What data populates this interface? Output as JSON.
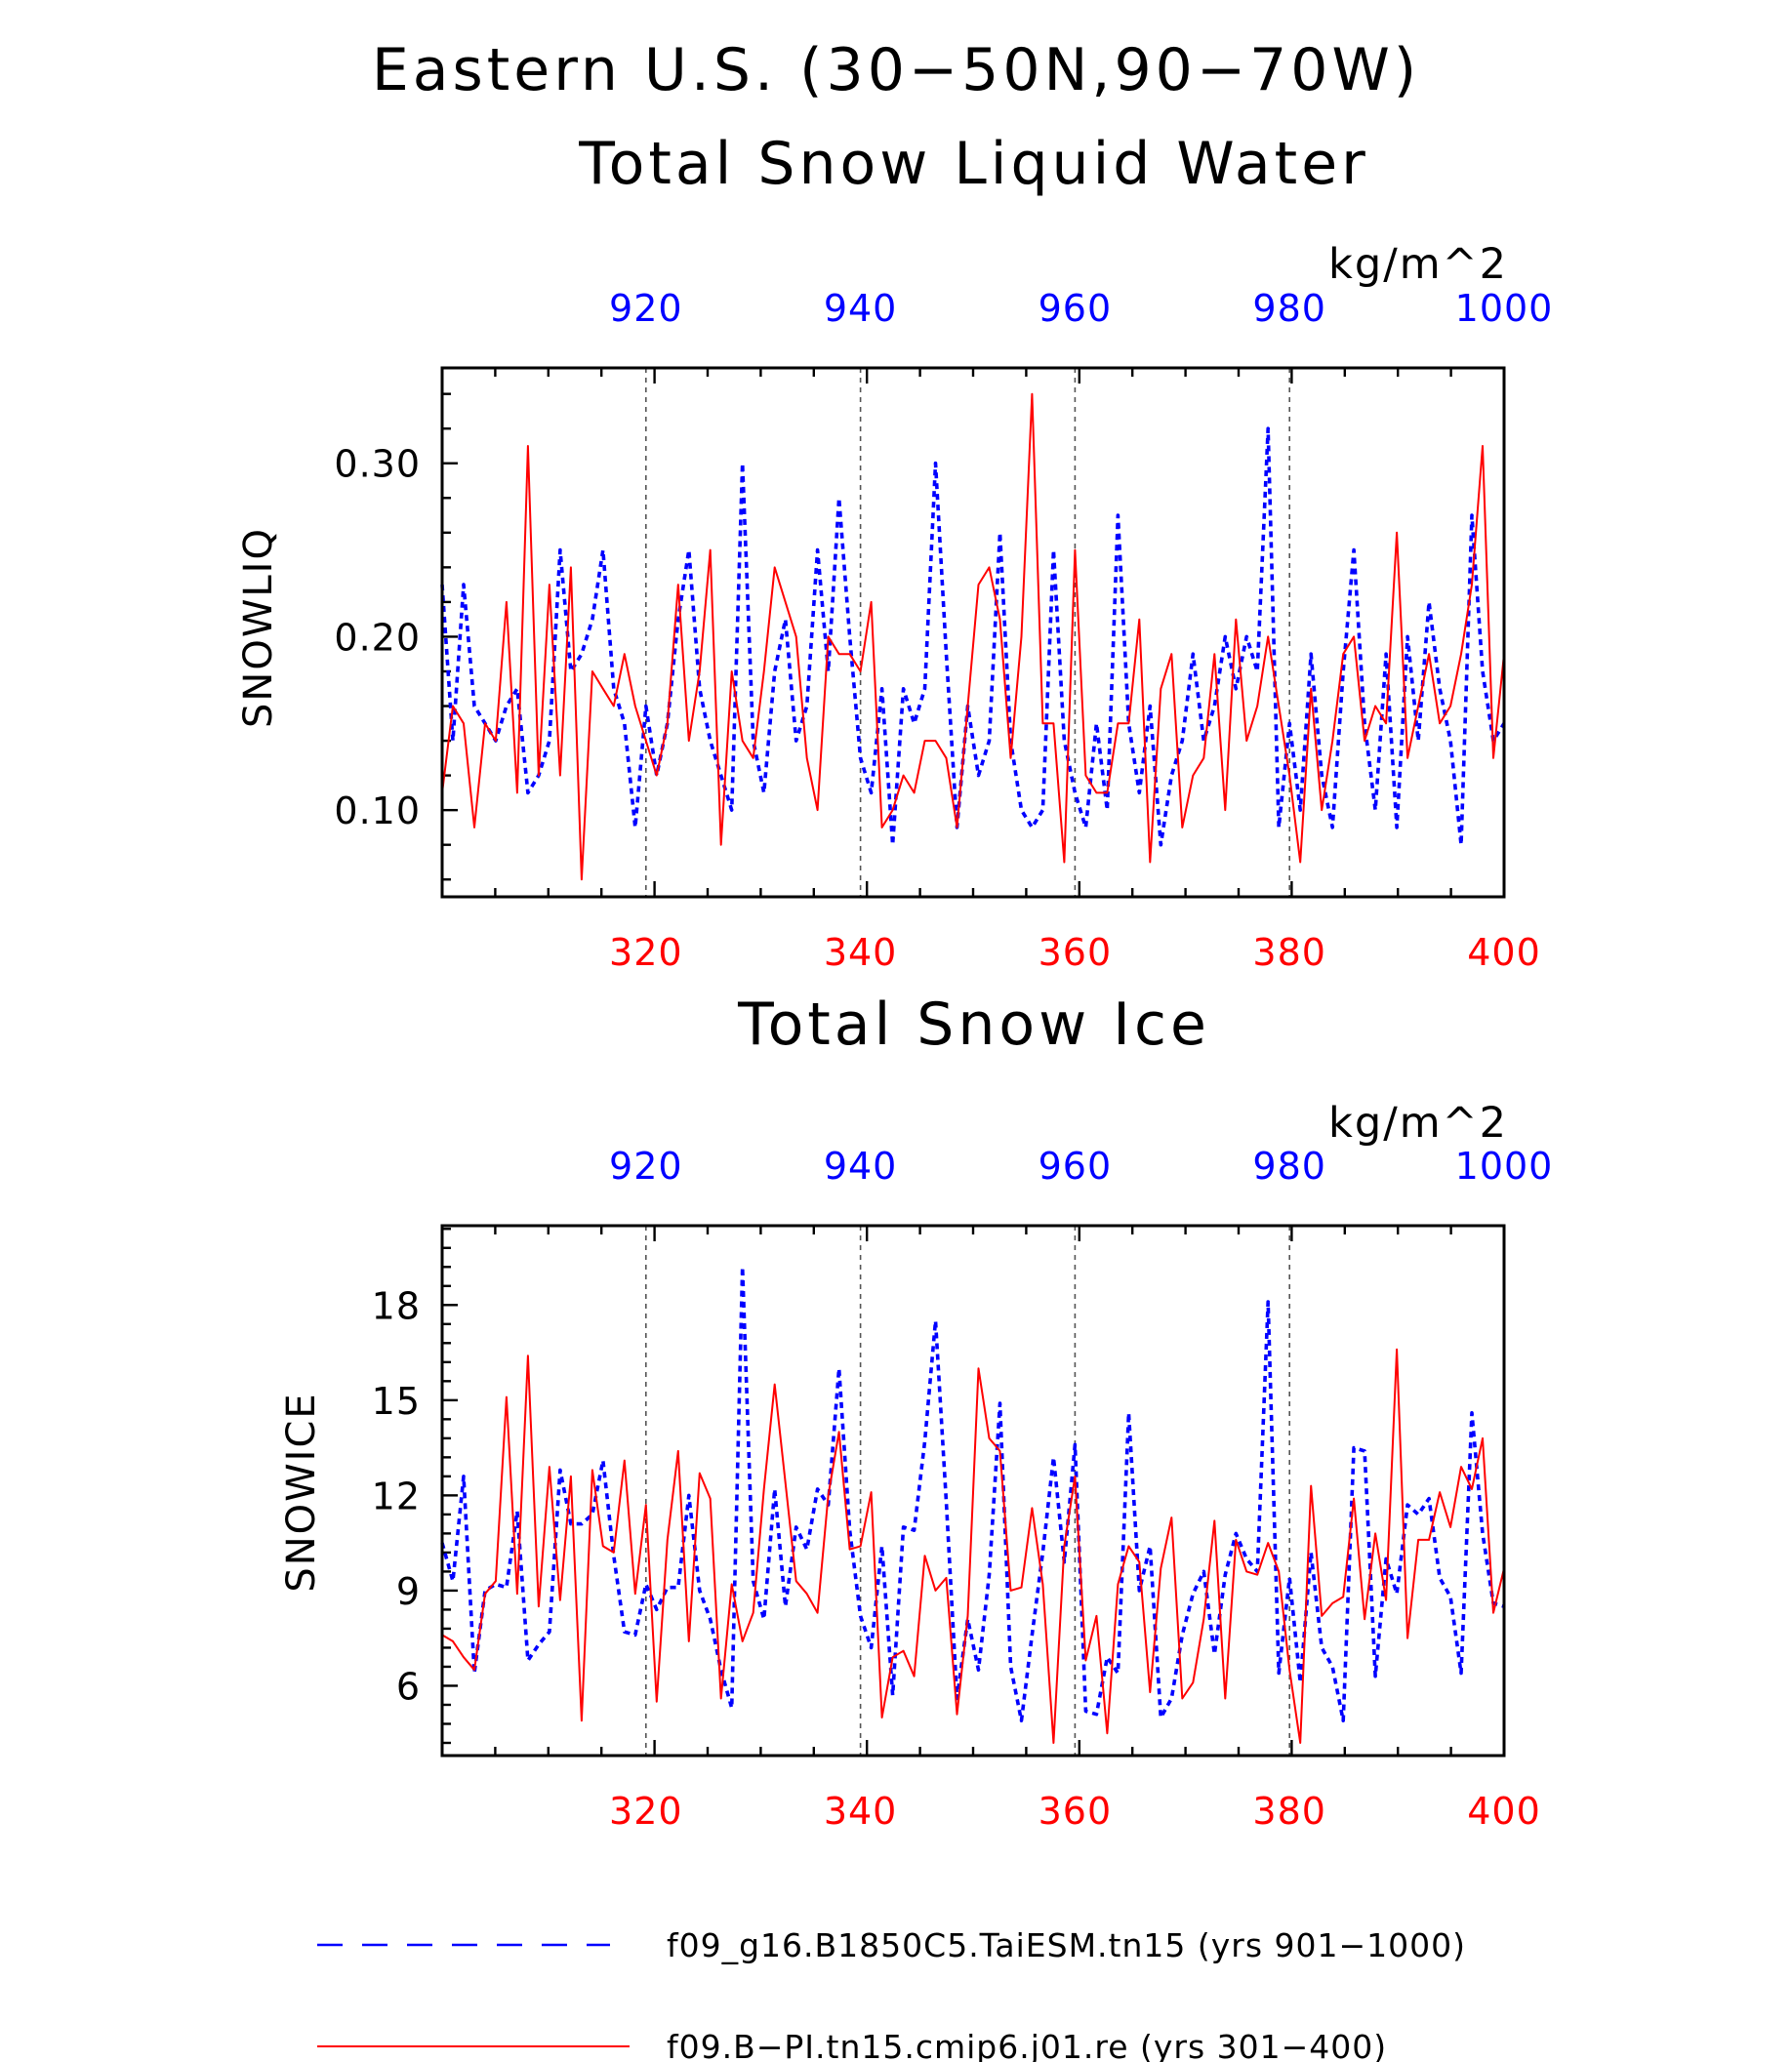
{
  "figure": {
    "title_line1": "Eastern U.S. (30−50N,90−70W)",
    "colors": {
      "blue": "#0000ff",
      "red": "#ff0000",
      "frame": "#000000",
      "grid": "#555555"
    }
  },
  "legend": {
    "items": [
      {
        "label": "f09_g16.B1850C5.TaiESM.tn15 (yrs 901−1000)",
        "color": "#0000ff",
        "style": "dashed"
      },
      {
        "label": "f09.B−PI.tn15.cmip6.j01.re (yrs 301−400)",
        "color": "#ff0000",
        "style": "solid"
      }
    ]
  },
  "chart_data": [
    {
      "type": "line",
      "title": "Total Snow Liquid Water",
      "units": "kg/m^2",
      "ylabel": "SNOWLIQ",
      "ylim": [
        0.05,
        0.355
      ],
      "yticks": [
        0.1,
        0.2,
        0.3
      ],
      "ytick_labels": [
        "0.10",
        "0.20",
        "0.30"
      ],
      "x_bottom": {
        "range": [
          301,
          400
        ],
        "ticks": [
          320,
          340,
          360,
          380,
          400
        ],
        "color": "#ff0000"
      },
      "x_top": {
        "range": [
          901,
          1000
        ],
        "ticks": [
          920,
          940,
          960,
          980,
          1000
        ],
        "color": "#0000ff"
      },
      "grid": "vertical dashed at major ticks",
      "series": [
        {
          "axis": "top",
          "color": "#0000ff",
          "style": "dashed",
          "x_start": 901,
          "x_end": 1000,
          "values": [
            0.23,
            0.14,
            0.23,
            0.16,
            0.15,
            0.14,
            0.16,
            0.17,
            0.11,
            0.12,
            0.14,
            0.25,
            0.18,
            0.19,
            0.21,
            0.25,
            0.17,
            0.15,
            0.09,
            0.16,
            0.12,
            0.15,
            0.21,
            0.25,
            0.17,
            0.14,
            0.12,
            0.1,
            0.3,
            0.14,
            0.11,
            0.18,
            0.21,
            0.14,
            0.16,
            0.25,
            0.18,
            0.28,
            0.2,
            0.13,
            0.11,
            0.17,
            0.08,
            0.17,
            0.15,
            0.17,
            0.3,
            0.19,
            0.09,
            0.16,
            0.12,
            0.14,
            0.26,
            0.14,
            0.1,
            0.09,
            0.1,
            0.25,
            0.14,
            0.11,
            0.09,
            0.15,
            0.1,
            0.27,
            0.15,
            0.11,
            0.16,
            0.08,
            0.12,
            0.14,
            0.19,
            0.14,
            0.16,
            0.2,
            0.17,
            0.2,
            0.18,
            0.32,
            0.09,
            0.15,
            0.1,
            0.19,
            0.12,
            0.09,
            0.18,
            0.25,
            0.15,
            0.1,
            0.19,
            0.09,
            0.2,
            0.14,
            0.22,
            0.17,
            0.14,
            0.08,
            0.27,
            0.18,
            0.14,
            0.15
          ]
        },
        {
          "axis": "bottom",
          "color": "#ff0000",
          "style": "solid",
          "x_start": 301,
          "x_end": 400,
          "values": [
            0.11,
            0.16,
            0.15,
            0.09,
            0.15,
            0.14,
            0.22,
            0.11,
            0.31,
            0.12,
            0.23,
            0.12,
            0.24,
            0.06,
            0.18,
            0.17,
            0.16,
            0.19,
            0.16,
            0.14,
            0.12,
            0.15,
            0.23,
            0.14,
            0.18,
            0.25,
            0.08,
            0.18,
            0.14,
            0.13,
            0.18,
            0.24,
            0.22,
            0.2,
            0.13,
            0.1,
            0.2,
            0.19,
            0.19,
            0.18,
            0.22,
            0.09,
            0.1,
            0.12,
            0.11,
            0.14,
            0.14,
            0.13,
            0.09,
            0.16,
            0.23,
            0.24,
            0.21,
            0.13,
            0.2,
            0.34,
            0.15,
            0.15,
            0.07,
            0.25,
            0.12,
            0.11,
            0.11,
            0.15,
            0.15,
            0.21,
            0.07,
            0.17,
            0.19,
            0.09,
            0.12,
            0.13,
            0.19,
            0.1,
            0.21,
            0.14,
            0.16,
            0.2,
            0.16,
            0.12,
            0.07,
            0.17,
            0.1,
            0.14,
            0.19,
            0.2,
            0.14,
            0.16,
            0.15,
            0.26,
            0.13,
            0.16,
            0.19,
            0.15,
            0.16,
            0.19,
            0.23,
            0.31,
            0.13,
            0.19
          ]
        }
      ]
    },
    {
      "type": "line",
      "title": "Total Snow Ice",
      "units": "kg/m^2",
      "ylabel": "SNOWICE",
      "ylim": [
        3.8,
        20.5
      ],
      "yticks": [
        6,
        9,
        12,
        15,
        18
      ],
      "ytick_labels": [
        "6",
        "9",
        "12",
        "15",
        "18"
      ],
      "x_bottom": {
        "range": [
          301,
          400
        ],
        "ticks": [
          320,
          340,
          360,
          380,
          400
        ],
        "color": "#ff0000"
      },
      "x_top": {
        "range": [
          901,
          1000
        ],
        "ticks": [
          920,
          940,
          960,
          980,
          1000
        ],
        "color": "#0000ff"
      },
      "grid": "vertical dashed at major ticks",
      "series": [
        {
          "axis": "top",
          "color": "#0000ff",
          "style": "dashed",
          "x_start": 901,
          "x_end": 1000,
          "values": [
            10.5,
            9.3,
            12.6,
            6.4,
            9.0,
            9.2,
            9.1,
            11.5,
            6.8,
            7.3,
            7.7,
            12.8,
            11.1,
            11.1,
            11.4,
            13.1,
            10.1,
            7.7,
            7.6,
            9.2,
            8.4,
            9.1,
            9.1,
            12.0,
            9.0,
            8.1,
            6.5,
            5.3,
            19.2,
            9.3,
            8.1,
            12.2,
            8.5,
            11.0,
            10.3,
            12.2,
            11.7,
            16.0,
            10.9,
            8.2,
            7.2,
            10.4,
            5.7,
            11.0,
            10.9,
            13.7,
            17.5,
            11.8,
            5.6,
            8.1,
            6.5,
            9.5,
            14.9,
            6.6,
            4.9,
            7.6,
            10.2,
            13.2,
            9.9,
            13.6,
            5.2,
            5.1,
            6.9,
            6.4,
            14.6,
            9.0,
            10.4,
            5.0,
            5.6,
            7.6,
            8.9,
            9.6,
            7.0,
            9.5,
            10.8,
            10.0,
            9.6,
            18.1,
            6.4,
            9.4,
            6.1,
            10.2,
            7.2,
            6.6,
            4.9,
            13.5,
            13.4,
            6.3,
            10.0,
            8.9,
            11.7,
            11.4,
            11.9,
            9.4,
            8.8,
            6.4,
            14.6,
            10.8,
            8.6,
            8.5
          ]
        },
        {
          "axis": "bottom",
          "color": "#ff0000",
          "style": "solid",
          "x_start": 301,
          "x_end": 400,
          "values": [
            7.6,
            7.4,
            6.9,
            6.5,
            8.9,
            9.3,
            15.1,
            8.9,
            16.4,
            8.5,
            12.9,
            8.7,
            12.6,
            4.9,
            12.8,
            10.4,
            10.2,
            13.1,
            8.9,
            11.7,
            5.5,
            10.6,
            13.4,
            7.4,
            12.7,
            11.9,
            5.6,
            9.2,
            7.4,
            8.3,
            12.2,
            15.5,
            12.4,
            9.3,
            8.9,
            8.3,
            12.0,
            14.0,
            10.3,
            10.4,
            12.1,
            5.0,
            6.9,
            7.1,
            6.3,
            10.1,
            9.0,
            9.4,
            5.1,
            8.2,
            16.0,
            13.8,
            13.4,
            9.0,
            9.1,
            11.6,
            9.2,
            4.2,
            10.4,
            12.6,
            6.8,
            8.2,
            4.5,
            9.2,
            10.4,
            9.9,
            5.8,
            9.7,
            11.3,
            5.6,
            6.1,
            8.1,
            11.2,
            5.6,
            10.6,
            9.6,
            9.5,
            10.5,
            9.6,
            6.5,
            4.2,
            12.3,
            8.2,
            8.6,
            8.8,
            11.9,
            8.1,
            10.8,
            8.7,
            16.6,
            7.5,
            10.6,
            10.6,
            12.1,
            11.0,
            12.9,
            12.2,
            13.8,
            8.3,
            9.7
          ]
        }
      ]
    }
  ]
}
